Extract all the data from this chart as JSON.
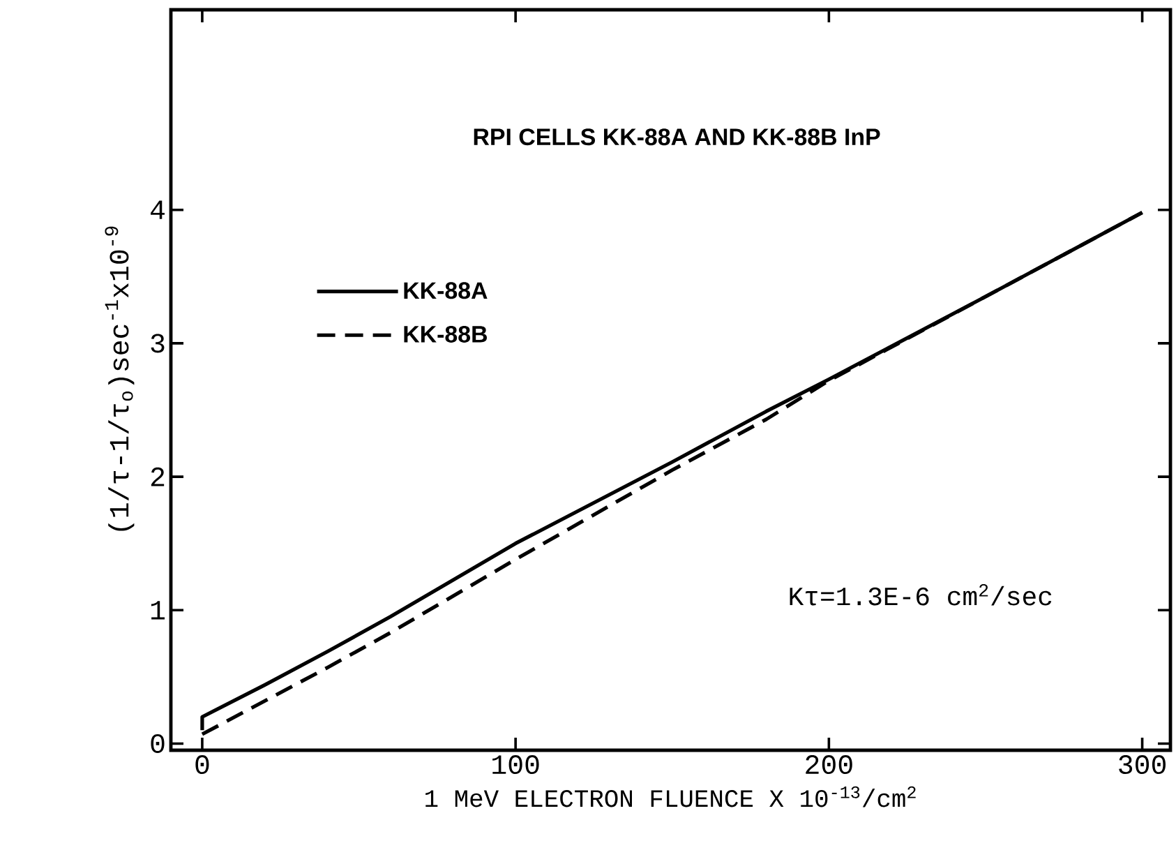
{
  "chart_data": {
    "type": "line",
    "title": "RPI CELLS KK-88A AND KK-88B InP",
    "xlabel": "1 MeV ELECTRON FLUENCE X 10$^{-13}$/cm$^{2}$",
    "ylabel": "(1/τ-1/τ$_{o}$)sec$^{-1}$x10$^{-9}$",
    "annotations": [
      "Kτ=1.3E-6 cm$^{2}$/sec"
    ],
    "xlim": [
      -10,
      309
    ],
    "ylim": [
      -0.05,
      5.5
    ],
    "xticks": [
      0,
      100,
      200,
      300
    ],
    "yticks": [
      0,
      1,
      2,
      3,
      4
    ],
    "legend": "top left",
    "series": [
      {
        "name": "KK-88A",
        "color": "#000000",
        "line_style": "solid",
        "x": [
          0,
          0,
          20,
          40,
          60,
          100,
          150,
          180,
          200,
          250,
          300
        ],
        "values": [
          0.1,
          0.2,
          0.44,
          0.69,
          0.95,
          1.5,
          2.11,
          2.49,
          2.73,
          3.35,
          3.98
        ]
      },
      {
        "name": "KK-88B",
        "color": "#000000",
        "line_style": "dashed",
        "x": [
          0,
          20,
          40,
          60,
          100,
          150,
          180,
          200,
          250,
          300
        ],
        "values": [
          0.07,
          0.32,
          0.57,
          0.83,
          1.38,
          2.05,
          2.43,
          2.72,
          3.35,
          3.98
        ]
      }
    ]
  }
}
